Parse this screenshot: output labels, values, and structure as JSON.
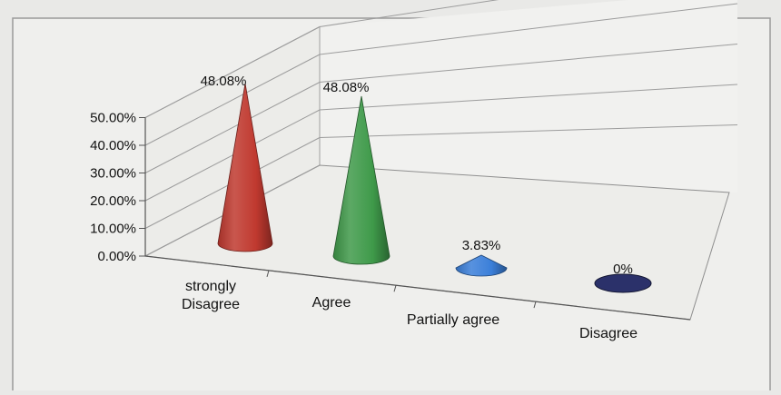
{
  "chart_data": {
    "type": "bar",
    "style": "3d-cone",
    "categories": [
      "strongly Disagree",
      "Agree",
      "Partially agree",
      "Disagree"
    ],
    "category_lines": [
      [
        "strongly",
        "Disagree"
      ],
      [
        "Agree"
      ],
      [
        "Partially agree"
      ],
      [
        "Disagree"
      ]
    ],
    "values": [
      48.08,
      48.08,
      3.83,
      0
    ],
    "data_labels": [
      "48.08%",
      "48.08%",
      "3.83%",
      "0%"
    ],
    "y_ticks": [
      "0.00%",
      "10.00%",
      "20.00%",
      "30.00%",
      "40.00%",
      "50.00%"
    ],
    "ylim": [
      0,
      50
    ],
    "grid": true,
    "legend": "none",
    "colors": [
      "#c0392f",
      "#3f9a4a",
      "#3b7fd9",
      "#2d3470"
    ]
  }
}
